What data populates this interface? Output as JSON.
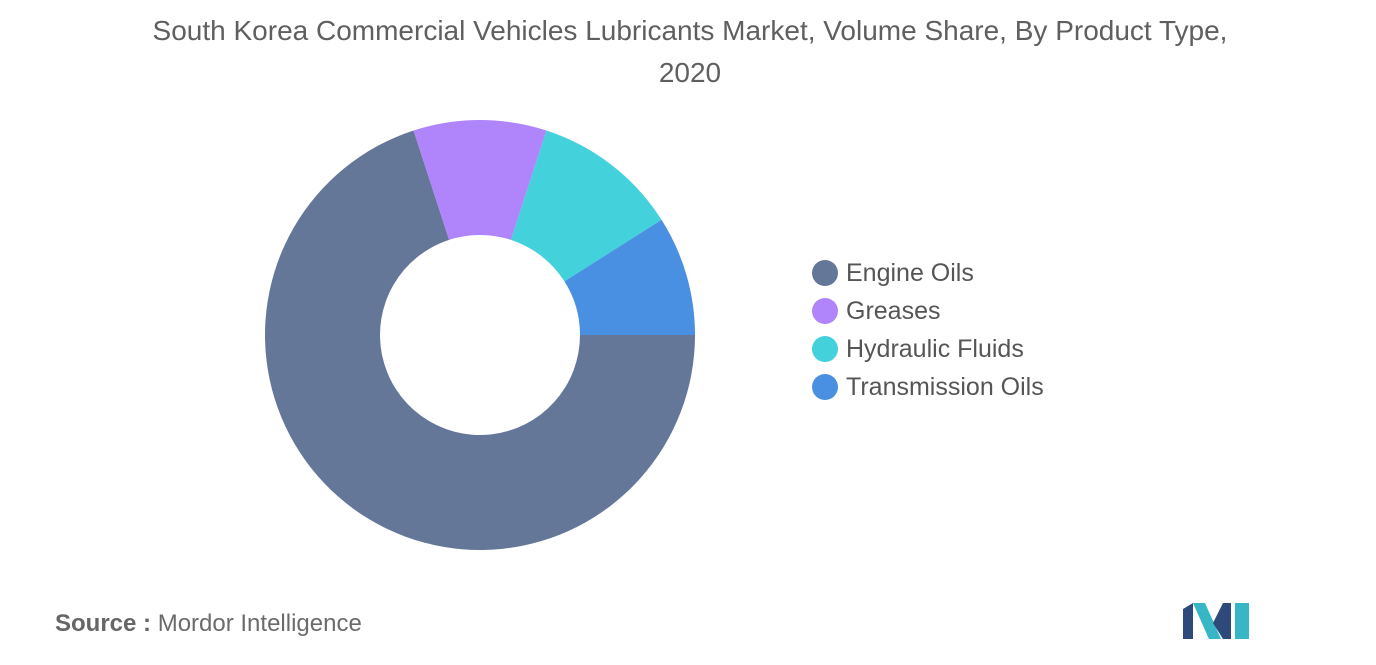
{
  "chart_data": {
    "type": "pie",
    "title": "South Korea Commercial Vehicles Lubricants Market, Volume Share, By Product Type, 2020",
    "categories": [
      "Engine Oils",
      "Greases",
      "Hydraulic Fluids",
      "Transmission Oils"
    ],
    "values": [
      70,
      10,
      11,
      9
    ],
    "colors": [
      "#657799",
      "#b084fa",
      "#43d1dc",
      "#4a90e2"
    ],
    "legend_position": "right",
    "donut": true
  },
  "source": {
    "prefix": "Source :",
    "text": "Mordor Intelligence"
  },
  "logo": {
    "colors": [
      "#2e4a7a",
      "#37b6c6"
    ]
  }
}
